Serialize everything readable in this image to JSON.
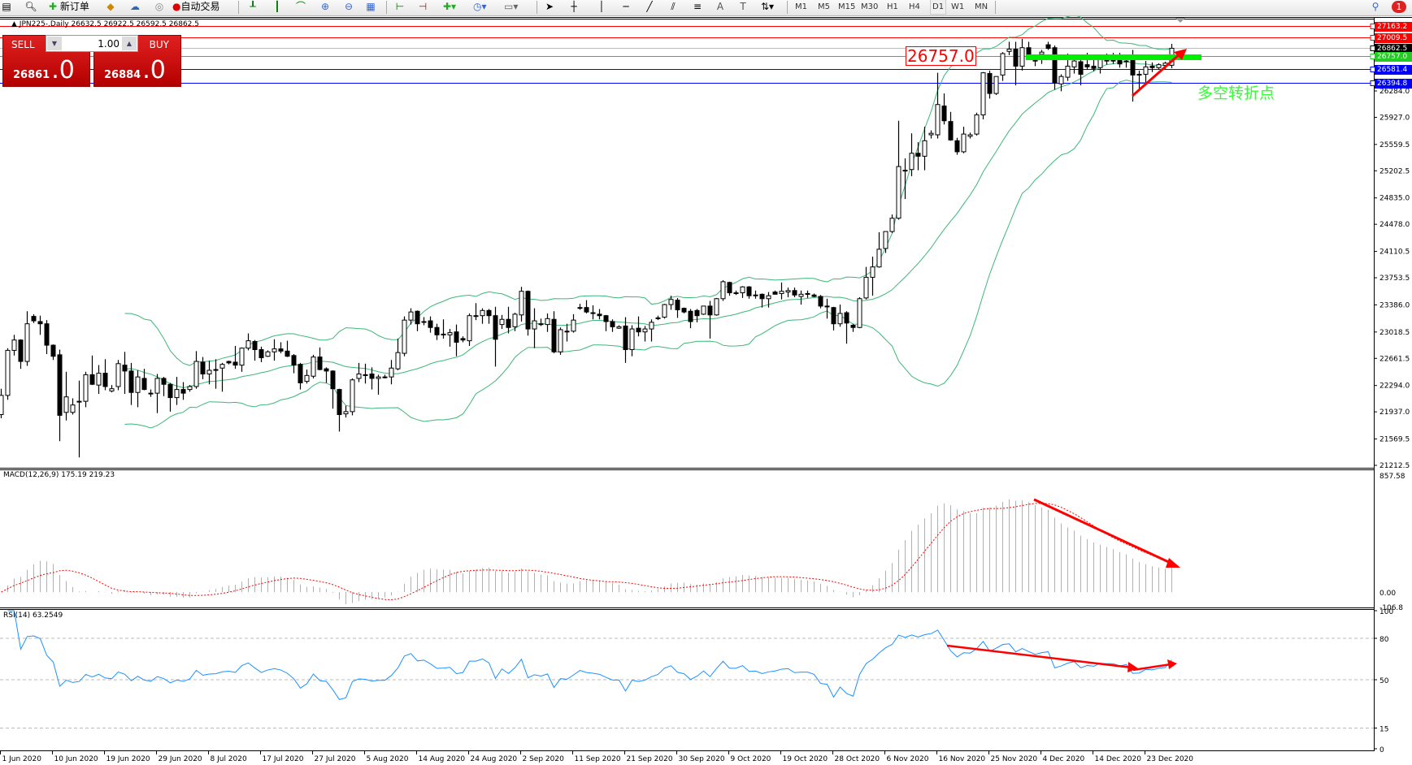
{
  "toolbar": {
    "new_order": "新订单",
    "auto_trading": "自动交易",
    "timeframes": [
      "M1",
      "M5",
      "M15",
      "M30",
      "H1",
      "H4",
      "D1",
      "W1",
      "MN"
    ],
    "active_timeframe": "D1",
    "notification_count": "1"
  },
  "chart": {
    "symbol_line": "JPN225-,Daily  26632.5 26922.5 26592.5 26862.5",
    "macd_label": "MACD(12,26,9) 175.19 219.23",
    "rsi_label": "RSI(14) 63.2549",
    "price_box": "26757.0",
    "annotation": "多空转折点"
  },
  "trade_panel": {
    "sell_label": "SELL",
    "buy_label": "BUY",
    "volume": "1.00",
    "sell_price_main": "26861",
    "sell_price_frac": ".0",
    "buy_price_main": "26884",
    "buy_price_frac": ".0"
  },
  "colors": {
    "up_candle": "#ffffff",
    "down_candle": "#000000",
    "bands": "#3cb878",
    "signal": "#ff0000",
    "histogram": "#b0b0b0",
    "rsi": "#1e90ff",
    "level_green": "#00ee00",
    "annotation": "#33ff33"
  },
  "chart_data": [
    {
      "type": "candlestick",
      "title": "JPN225-,Daily",
      "overlay": "Bollinger Bands",
      "yaxis_ticks": [
        "26284.0",
        "25927.0",
        "25559.5",
        "25202.5",
        "24835.0",
        "24478.0",
        "24110.5",
        "23753.5",
        "23386.0",
        "23018.5",
        "22661.5",
        "22294.0",
        "21937.0",
        "21569.5",
        "21212.5"
      ],
      "ylim": [
        21212.5,
        27163.2
      ],
      "date_labels": [
        "1 Jun 2020",
        "10 Jun 2020",
        "19 Jun 2020",
        "29 Jun 2020",
        "8 Jul 2020",
        "17 Jul 2020",
        "27 Jul 2020",
        "5 Aug 2020",
        "14 Aug 2020",
        "24 Aug 2020",
        "2 Sep 2020",
        "11 Sep 2020",
        "21 Sep 2020",
        "30 Sep 2020",
        "9 Oct 2020",
        "19 Oct 2020",
        "28 Oct 2020",
        "6 Nov 2020",
        "16 Nov 2020",
        "25 Nov 2020",
        "4 Dec 2020",
        "14 Dec 2020",
        "23 Dec 2020"
      ],
      "horizontal_levels": [
        {
          "price": 27163.2,
          "label": "27163.2",
          "color": "#ff0000"
        },
        {
          "price": 27009.5,
          "label": "27009.5",
          "color": "#ff0000"
        },
        {
          "price": 26862.5,
          "label": "26862.5",
          "color": "#000000"
        },
        {
          "price": 26757.0,
          "label": "26757.0",
          "color": "#22cc22"
        },
        {
          "price": 26581.4,
          "label": "26581.4",
          "color": "#0000ff"
        },
        {
          "price": 26394.8,
          "label": "26394.8",
          "color": "#0000ff"
        }
      ],
      "ohlc": [
        [
          21900,
          22250,
          21850,
          22160
        ],
        [
          22160,
          22800,
          22100,
          22770
        ],
        [
          22770,
          22980,
          22700,
          22910
        ],
        [
          22910,
          22920,
          22520,
          22620
        ],
        [
          22620,
          23300,
          22560,
          23130
        ],
        [
          23230,
          23260,
          23140,
          23170
        ],
        [
          23160,
          23240,
          22980,
          23130
        ],
        [
          23130,
          23180,
          22720,
          22840
        ],
        [
          22840,
          22850,
          22640,
          22690
        ],
        [
          22710,
          22780,
          21540,
          21890
        ],
        [
          21930,
          22480,
          21820,
          22140
        ],
        [
          21930,
          22120,
          21900,
          22030
        ],
        [
          22070,
          22360,
          21320,
          22080
        ],
        [
          22080,
          22480,
          22000,
          22440
        ],
        [
          22440,
          22700,
          22300,
          22310
        ],
        [
          22300,
          22570,
          22180,
          22460
        ],
        [
          22460,
          22650,
          22230,
          22280
        ],
        [
          22220,
          22300,
          22200,
          22250
        ],
        [
          22280,
          22640,
          22230,
          22590
        ],
        [
          22570,
          22750,
          22180,
          22490
        ],
        [
          22490,
          22600,
          22030,
          22200
        ],
        [
          22200,
          22500,
          22000,
          22410
        ],
        [
          22390,
          22520,
          22230,
          22240
        ],
        [
          22190,
          22240,
          22140,
          22190
        ],
        [
          22190,
          22450,
          21920,
          22390
        ],
        [
          22390,
          22410,
          22150,
          22310
        ],
        [
          22310,
          22330,
          21940,
          22130
        ],
        [
          22130,
          22410,
          22030,
          22240
        ],
        [
          22240,
          22340,
          22100,
          22190
        ],
        [
          22240,
          22300,
          22210,
          22280
        ],
        [
          22280,
          22760,
          22250,
          22620
        ],
        [
          22610,
          22680,
          22380,
          22450
        ],
        [
          22450,
          22630,
          22310,
          22500
        ],
        [
          22500,
          22650,
          22250,
          22510
        ],
        [
          22530,
          22600,
          22210,
          22580
        ],
        [
          22620,
          22630,
          22580,
          22600
        ],
        [
          22610,
          22830,
          22520,
          22570
        ],
        [
          22570,
          22810,
          22480,
          22800
        ],
        [
          22800,
          23000,
          22770,
          22900
        ],
        [
          22890,
          22910,
          22630,
          22780
        ],
        [
          22780,
          22820,
          22610,
          22670
        ],
        [
          22690,
          22770,
          22680,
          22750
        ],
        [
          22750,
          22920,
          22630,
          22790
        ],
        [
          22790,
          22880,
          22730,
          22760
        ],
        [
          22760,
          22900,
          22680,
          22690
        ],
        [
          22700,
          22720,
          22460,
          22570
        ],
        [
          22580,
          22600,
          22240,
          22330
        ],
        [
          22350,
          22510,
          22320,
          22430
        ],
        [
          22420,
          22710,
          22390,
          22680
        ],
        [
          22680,
          22810,
          22500,
          22510
        ],
        [
          22520,
          22540,
          22330,
          22490
        ],
        [
          22490,
          22500,
          21980,
          22250
        ],
        [
          22240,
          22250,
          21670,
          21900
        ],
        [
          21910,
          22020,
          21860,
          21940
        ],
        [
          21940,
          22390,
          21890,
          22370
        ],
        [
          22390,
          22600,
          22340,
          22450
        ],
        [
          22440,
          22590,
          22320,
          22440
        ],
        [
          22450,
          22540,
          22240,
          22390
        ],
        [
          22390,
          22440,
          22170,
          22410
        ],
        [
          22410,
          22440,
          22390,
          22410
        ],
        [
          22410,
          22640,
          22310,
          22530
        ],
        [
          22520,
          22930,
          22500,
          22740
        ],
        [
          22730,
          23230,
          22690,
          23180
        ],
        [
          23180,
          23340,
          23120,
          23290
        ],
        [
          23300,
          23310,
          23030,
          23130
        ],
        [
          23150,
          23220,
          23110,
          23160
        ],
        [
          23170,
          23230,
          23010,
          23080
        ],
        [
          23080,
          23130,
          22910,
          22980
        ],
        [
          22990,
          23190,
          22930,
          22990
        ],
        [
          22980,
          23060,
          22820,
          23010
        ],
        [
          23020,
          23120,
          22690,
          22880
        ],
        [
          22930,
          22960,
          22880,
          22910
        ],
        [
          22900,
          23270,
          22830,
          23240
        ],
        [
          23240,
          23410,
          23180,
          23240
        ],
        [
          23240,
          23340,
          23130,
          23310
        ],
        [
          23310,
          23330,
          23130,
          23240
        ],
        [
          23240,
          23360,
          22550,
          22920
        ],
        [
          23120,
          23250,
          23060,
          23190
        ],
        [
          23190,
          23360,
          23000,
          23080
        ],
        [
          23090,
          23280,
          23030,
          23260
        ],
        [
          23250,
          23630,
          23160,
          23570
        ],
        [
          23570,
          23580,
          22970,
          23060
        ],
        [
          23060,
          23340,
          22800,
          23170
        ],
        [
          23130,
          23200,
          23100,
          23130
        ],
        [
          23120,
          23270,
          23020,
          23200
        ],
        [
          23190,
          23300,
          22730,
          22750
        ],
        [
          22750,
          23080,
          22710,
          23050
        ],
        [
          23030,
          23130,
          22890,
          23030
        ],
        [
          23030,
          23260,
          23010,
          23180
        ],
        [
          23340,
          23400,
          23320,
          23350
        ],
        [
          23350,
          23450,
          23270,
          23290
        ],
        [
          23280,
          23380,
          23190,
          23270
        ],
        [
          23260,
          23330,
          23190,
          23240
        ],
        [
          23240,
          23250,
          23030,
          23160
        ],
        [
          23160,
          23190,
          23020,
          23090
        ],
        [
          23070,
          23110,
          23060,
          23090
        ],
        [
          23100,
          23220,
          22600,
          22780
        ],
        [
          22780,
          23110,
          22690,
          23060
        ],
        [
          23070,
          23230,
          22960,
          23020
        ],
        [
          23020,
          23100,
          22890,
          23060
        ],
        [
          23060,
          23190,
          22890,
          23150
        ],
        [
          23210,
          23240,
          23180,
          23210
        ],
        [
          23220,
          23400,
          23200,
          23390
        ],
        [
          23390,
          23510,
          23320,
          23460
        ],
        [
          23450,
          23480,
          23210,
          23320
        ],
        [
          23340,
          23350,
          23270,
          23290
        ],
        [
          23300,
          23330,
          23070,
          23160
        ],
        [
          23310,
          23330,
          23150,
          23240
        ],
        [
          23260,
          23370,
          23250,
          23370
        ],
        [
          23370,
          23440,
          22930,
          23250
        ],
        [
          23250,
          23480,
          23240,
          23470
        ],
        [
          23470,
          23720,
          23440,
          23700
        ],
        [
          23690,
          23700,
          23510,
          23550
        ],
        [
          23550,
          23580,
          23520,
          23550
        ],
        [
          23550,
          23640,
          23480,
          23630
        ],
        [
          23630,
          23640,
          23470,
          23510
        ],
        [
          23510,
          23580,
          23470,
          23520
        ],
        [
          23530,
          23540,
          23350,
          23470
        ],
        [
          23470,
          23560,
          23350,
          23510
        ],
        [
          23560,
          23580,
          23530,
          23530
        ],
        [
          23540,
          23690,
          23460,
          23570
        ],
        [
          23560,
          23620,
          23490,
          23580
        ],
        [
          23580,
          23620,
          23490,
          23520
        ],
        [
          23500,
          23580,
          23390,
          23530
        ],
        [
          23540,
          23580,
          23480,
          23530
        ],
        [
          23520,
          23540,
          23490,
          23500
        ],
        [
          23500,
          23520,
          23340,
          23370
        ],
        [
          23370,
          23470,
          23200,
          23360
        ],
        [
          23350,
          23360,
          23040,
          23130
        ],
        [
          23130,
          23390,
          23090,
          23270
        ],
        [
          23280,
          23300,
          22860,
          23140
        ],
        [
          23110,
          23130,
          23020,
          23080
        ],
        [
          23080,
          23490,
          23070,
          23470
        ],
        [
          23480,
          23900,
          23460,
          23760
        ],
        [
          23760,
          24040,
          23510,
          23900
        ],
        [
          23900,
          24370,
          23890,
          24140
        ],
        [
          24150,
          24380,
          24090,
          24380
        ],
        [
          24380,
          24610,
          24360,
          24560
        ],
        [
          24560,
          25880,
          24540,
          25260
        ],
        [
          25200,
          25370,
          24820,
          25210
        ],
        [
          25220,
          25710,
          25130,
          25440
        ],
        [
          25440,
          25590,
          25210,
          25400
        ],
        [
          25400,
          25800,
          25210,
          25610
        ],
        [
          25690,
          25750,
          25640,
          25710
        ],
        [
          25690,
          26530,
          25640,
          26100
        ],
        [
          26080,
          26250,
          25830,
          25880
        ],
        [
          25870,
          26000,
          25610,
          25620
        ],
        [
          25610,
          25650,
          25420,
          25460
        ],
        [
          25460,
          25800,
          25440,
          25700
        ],
        [
          25670,
          25720,
          25640,
          25690
        ],
        [
          25700,
          25990,
          25680,
          25960
        ],
        [
          25960,
          26540,
          25900,
          26530
        ],
        [
          26520,
          26560,
          26180,
          26250
        ],
        [
          26250,
          26480,
          26230,
          26480
        ],
        [
          26500,
          26810,
          26420,
          26790
        ],
        [
          26820,
          26950,
          26770,
          26850
        ],
        [
          26850,
          26950,
          26360,
          26620
        ],
        [
          26620,
          26990,
          26560,
          26870
        ],
        [
          26870,
          26950,
          26770,
          26780
        ],
        [
          26700,
          26750,
          26620,
          26700
        ],
        [
          26780,
          26840,
          26650,
          26810
        ],
        [
          26910,
          26950,
          26840,
          26860
        ],
        [
          26870,
          26900,
          26300,
          26390
        ],
        [
          26380,
          26510,
          26280,
          26480
        ],
        [
          26470,
          26790,
          26420,
          26620
        ],
        [
          26610,
          26740,
          26520,
          26690
        ],
        [
          26680,
          26760,
          26360,
          26510
        ],
        [
          26640,
          26800,
          26570,
          26610
        ],
        [
          26620,
          26770,
          26550,
          26590
        ],
        [
          26600,
          26780,
          26520,
          26710
        ],
        [
          26700,
          26790,
          26640,
          26700
        ],
        [
          26700,
          26800,
          26650,
          26700
        ],
        [
          26710,
          26800,
          26600,
          26650
        ],
        [
          26680,
          26760,
          26600,
          26690
        ],
        [
          26710,
          26840,
          26140,
          26500
        ],
        [
          26510,
          26560,
          26320,
          26510
        ],
        [
          26510,
          26690,
          26400,
          26610
        ],
        [
          26620,
          26670,
          26540,
          26600
        ],
        [
          26600,
          26660,
          26570,
          26640
        ],
        [
          26630,
          26680,
          26570,
          26660
        ],
        [
          26632.5,
          26922.5,
          26592.5,
          26862.5
        ]
      ]
    },
    {
      "type": "bar+line",
      "title": "MACD(12,26,9)",
      "yaxis_ticks": [
        "857.58",
        "0.00",
        "-106.8"
      ],
      "ylim": [
        -106.8,
        857.58
      ],
      "params": [
        12,
        26,
        9
      ]
    },
    {
      "type": "line",
      "title": "RSI(14)",
      "yaxis_ticks": [
        "100",
        "80",
        "50",
        "15",
        "0"
      ],
      "levels": [
        80,
        50,
        15
      ],
      "ylim": [
        0,
        100
      ],
      "period": 14
    }
  ]
}
